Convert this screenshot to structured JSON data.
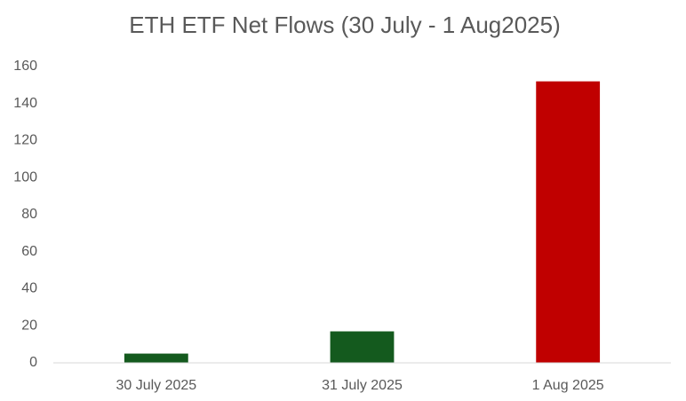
{
  "chart_data": {
    "type": "bar",
    "title": "ETH ETF Net Flows (30 July - 1 Aug2025)",
    "categories": [
      "30 July 2025",
      "31 July 2025",
      "1 Aug 2025"
    ],
    "values": [
      5,
      17,
      152
    ],
    "colors": [
      "#145a1e",
      "#145a1e",
      "#c00000"
    ],
    "ylim": [
      0,
      160
    ],
    "yticks": [
      0,
      20,
      40,
      60,
      80,
      100,
      120,
      140,
      160
    ],
    "grid": false
  }
}
